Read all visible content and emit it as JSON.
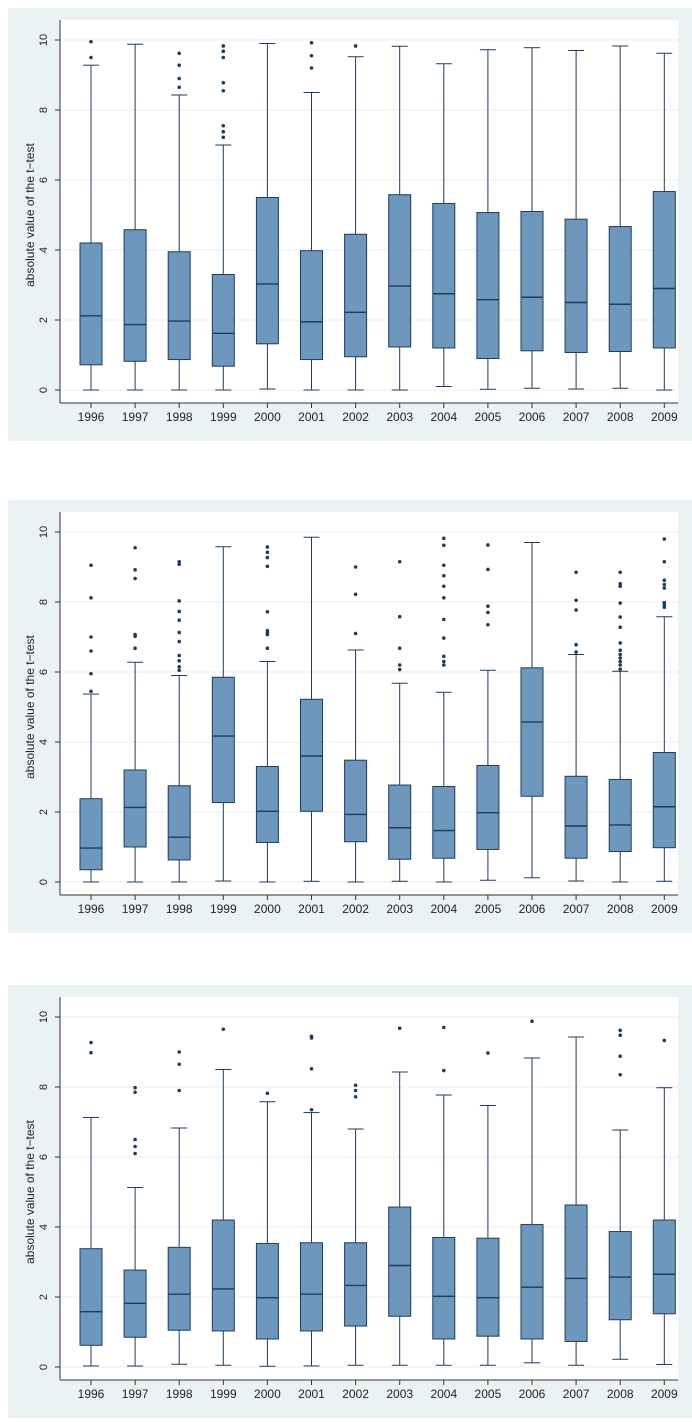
{
  "colors": {
    "panel_background": "#eaf2f3",
    "plot_background": "#ffffff",
    "box_fill": "#6d97bd",
    "box_stroke": "#1f3c5a",
    "grid": "#e8eef2"
  },
  "chart_data": [
    {
      "type": "box",
      "ylabel": "absolute value of the t−test",
      "ylim": [
        0,
        10
      ],
      "yticks": [
        "0",
        "2",
        "4",
        "6",
        "8",
        "10"
      ],
      "grid": true,
      "categories": [
        "1996",
        "1997",
        "1998",
        "1999",
        "2000",
        "2001",
        "2002",
        "2003",
        "2004",
        "2005",
        "2006",
        "2007",
        "2008",
        "2009"
      ],
      "boxes": [
        {
          "min": 0.0,
          "q1": 0.72,
          "median": 2.12,
          "q3": 4.2,
          "max": 9.28,
          "outliers": [
            9.5,
            9.95
          ]
        },
        {
          "min": 0.0,
          "q1": 0.82,
          "median": 1.87,
          "q3": 4.58,
          "max": 9.88,
          "outliers": []
        },
        {
          "min": 0.0,
          "q1": 0.87,
          "median": 1.97,
          "q3": 3.95,
          "max": 8.43,
          "outliers": [
            8.65,
            8.9,
            9.28,
            9.62
          ]
        },
        {
          "min": 0.0,
          "q1": 0.68,
          "median": 1.62,
          "q3": 3.3,
          "max": 7.0,
          "outliers": [
            7.22,
            7.38,
            7.55,
            8.55,
            8.78,
            9.5,
            9.68,
            9.83
          ]
        },
        {
          "min": 0.03,
          "q1": 1.32,
          "median": 3.03,
          "q3": 5.5,
          "max": 9.9,
          "outliers": []
        },
        {
          "min": 0.0,
          "q1": 0.87,
          "median": 1.95,
          "q3": 3.98,
          "max": 8.5,
          "outliers": [
            9.2,
            9.55,
            9.92
          ]
        },
        {
          "min": 0.0,
          "q1": 0.95,
          "median": 2.22,
          "q3": 4.45,
          "max": 9.52,
          "outliers": [
            9.83
          ]
        },
        {
          "min": 0.0,
          "q1": 1.23,
          "median": 2.97,
          "q3": 5.58,
          "max": 9.82,
          "outliers": []
        },
        {
          "min": 0.1,
          "q1": 1.2,
          "median": 2.75,
          "q3": 5.33,
          "max": 9.32,
          "outliers": []
        },
        {
          "min": 0.02,
          "q1": 0.9,
          "median": 2.58,
          "q3": 5.07,
          "max": 9.72,
          "outliers": []
        },
        {
          "min": 0.05,
          "q1": 1.12,
          "median": 2.65,
          "q3": 5.1,
          "max": 9.78,
          "outliers": []
        },
        {
          "min": 0.03,
          "q1": 1.07,
          "median": 2.5,
          "q3": 4.88,
          "max": 9.7,
          "outliers": []
        },
        {
          "min": 0.05,
          "q1": 1.1,
          "median": 2.45,
          "q3": 4.67,
          "max": 9.83,
          "outliers": []
        },
        {
          "min": 0.0,
          "q1": 1.2,
          "median": 2.9,
          "q3": 5.67,
          "max": 9.62,
          "outliers": []
        }
      ]
    },
    {
      "type": "box",
      "ylabel": "absolute value of the t−test",
      "ylim": [
        0,
        10
      ],
      "yticks": [
        "0",
        "2",
        "4",
        "6",
        "8",
        "10"
      ],
      "grid": true,
      "categories": [
        "1996",
        "1997",
        "1998",
        "1999",
        "2000",
        "2001",
        "2002",
        "2003",
        "2004",
        "2005",
        "2006",
        "2007",
        "2008",
        "2009"
      ],
      "boxes": [
        {
          "min": 0.0,
          "q1": 0.35,
          "median": 0.97,
          "q3": 2.38,
          "max": 5.37,
          "outliers": [
            5.45,
            5.95,
            6.6,
            7.0,
            8.12,
            9.05
          ]
        },
        {
          "min": 0.0,
          "q1": 1.0,
          "median": 2.13,
          "q3": 3.2,
          "max": 6.28,
          "outliers": [
            6.68,
            7.02,
            7.07,
            8.67,
            8.92,
            9.55
          ]
        },
        {
          "min": 0.0,
          "q1": 0.63,
          "median": 1.28,
          "q3": 2.75,
          "max": 5.9,
          "outliers": [
            6.05,
            6.15,
            6.32,
            6.47,
            6.87,
            7.13,
            7.48,
            7.73,
            8.03,
            9.08,
            9.15
          ]
        },
        {
          "min": 0.03,
          "q1": 2.27,
          "median": 4.17,
          "q3": 5.85,
          "max": 9.58,
          "outliers": []
        },
        {
          "min": 0.0,
          "q1": 1.13,
          "median": 2.02,
          "q3": 3.3,
          "max": 6.3,
          "outliers": [
            6.68,
            7.07,
            7.12,
            7.18,
            7.72,
            9.02,
            9.27,
            9.42,
            9.57
          ]
        },
        {
          "min": 0.02,
          "q1": 2.02,
          "median": 3.6,
          "q3": 5.22,
          "max": 9.85,
          "outliers": []
        },
        {
          "min": 0.0,
          "q1": 1.15,
          "median": 1.93,
          "q3": 3.48,
          "max": 6.63,
          "outliers": [
            7.1,
            8.22,
            9.0
          ]
        },
        {
          "min": 0.02,
          "q1": 0.65,
          "median": 1.55,
          "q3": 2.77,
          "max": 5.68,
          "outliers": [
            6.07,
            6.2,
            6.68,
            7.58,
            9.15
          ]
        },
        {
          "min": 0.0,
          "q1": 0.68,
          "median": 1.47,
          "q3": 2.73,
          "max": 5.42,
          "outliers": [
            6.2,
            6.3,
            6.45,
            6.97,
            7.5,
            8.12,
            8.45,
            8.75,
            9.05,
            9.62,
            9.82
          ]
        },
        {
          "min": 0.05,
          "q1": 0.93,
          "median": 1.98,
          "q3": 3.33,
          "max": 6.05,
          "outliers": [
            7.35,
            7.7,
            7.88,
            8.93,
            9.63
          ]
        },
        {
          "min": 0.12,
          "q1": 2.45,
          "median": 4.57,
          "q3": 6.12,
          "max": 9.7,
          "outliers": []
        },
        {
          "min": 0.03,
          "q1": 0.68,
          "median": 1.6,
          "q3": 3.02,
          "max": 6.5,
          "outliers": [
            6.57,
            6.78,
            7.77,
            8.05,
            8.85
          ]
        },
        {
          "min": 0.0,
          "q1": 0.87,
          "median": 1.63,
          "q3": 2.93,
          "max": 6.02,
          "outliers": [
            6.08,
            6.2,
            6.3,
            6.4,
            6.5,
            6.62,
            6.83,
            7.28,
            7.57,
            7.97,
            8.45,
            8.52,
            8.85
          ]
        },
        {
          "min": 0.02,
          "q1": 0.98,
          "median": 2.15,
          "q3": 3.7,
          "max": 7.58,
          "outliers": [
            7.85,
            7.92,
            7.98,
            8.4,
            8.5,
            8.62,
            9.15,
            9.8
          ]
        }
      ]
    },
    {
      "type": "box",
      "ylabel": "absolute value of the t−test",
      "ylim": [
        0,
        10
      ],
      "yticks": [
        "0",
        "2",
        "4",
        "6",
        "8",
        "10"
      ],
      "grid": true,
      "categories": [
        "1996",
        "1997",
        "1998",
        "1999",
        "2000",
        "2001",
        "2002",
        "2003",
        "2004",
        "2005",
        "2006",
        "2007",
        "2008",
        "2009"
      ],
      "boxes": [
        {
          "min": 0.03,
          "q1": 0.62,
          "median": 1.58,
          "q3": 3.38,
          "max": 7.13,
          "outliers": [
            8.98,
            9.27
          ]
        },
        {
          "min": 0.03,
          "q1": 0.85,
          "median": 1.82,
          "q3": 2.77,
          "max": 5.13,
          "outliers": [
            6.1,
            6.3,
            6.5,
            7.85,
            7.98
          ]
        },
        {
          "min": 0.08,
          "q1": 1.05,
          "median": 2.08,
          "q3": 3.42,
          "max": 6.83,
          "outliers": [
            7.9,
            8.65,
            9.0
          ]
        },
        {
          "min": 0.05,
          "q1": 1.03,
          "median": 2.23,
          "q3": 4.2,
          "max": 8.5,
          "outliers": [
            9.65
          ]
        },
        {
          "min": 0.02,
          "q1": 0.8,
          "median": 1.98,
          "q3": 3.53,
          "max": 7.58,
          "outliers": [
            7.82
          ]
        },
        {
          "min": 0.03,
          "q1": 1.03,
          "median": 2.08,
          "q3": 3.55,
          "max": 7.27,
          "outliers": [
            7.35,
            8.52,
            9.4,
            9.45
          ]
        },
        {
          "min": 0.05,
          "q1": 1.17,
          "median": 2.33,
          "q3": 3.55,
          "max": 6.8,
          "outliers": [
            7.72,
            7.9,
            8.05
          ]
        },
        {
          "min": 0.05,
          "q1": 1.45,
          "median": 2.9,
          "q3": 4.57,
          "max": 8.43,
          "outliers": [
            9.68
          ]
        },
        {
          "min": 0.05,
          "q1": 0.8,
          "median": 2.02,
          "q3": 3.7,
          "max": 7.77,
          "outliers": [
            8.47,
            9.7
          ]
        },
        {
          "min": 0.05,
          "q1": 0.88,
          "median": 1.98,
          "q3": 3.68,
          "max": 7.47,
          "outliers": [
            8.97
          ]
        },
        {
          "min": 0.12,
          "q1": 0.8,
          "median": 2.28,
          "q3": 4.07,
          "max": 8.83,
          "outliers": [
            9.88
          ]
        },
        {
          "min": 0.05,
          "q1": 0.73,
          "median": 2.53,
          "q3": 4.63,
          "max": 9.43,
          "outliers": []
        },
        {
          "min": 0.22,
          "q1": 1.35,
          "median": 2.57,
          "q3": 3.87,
          "max": 6.77,
          "outliers": [
            8.35,
            8.88,
            9.48,
            9.62
          ]
        },
        {
          "min": 0.07,
          "q1": 1.52,
          "median": 2.65,
          "q3": 4.2,
          "max": 7.98,
          "outliers": [
            9.33
          ]
        }
      ]
    }
  ]
}
